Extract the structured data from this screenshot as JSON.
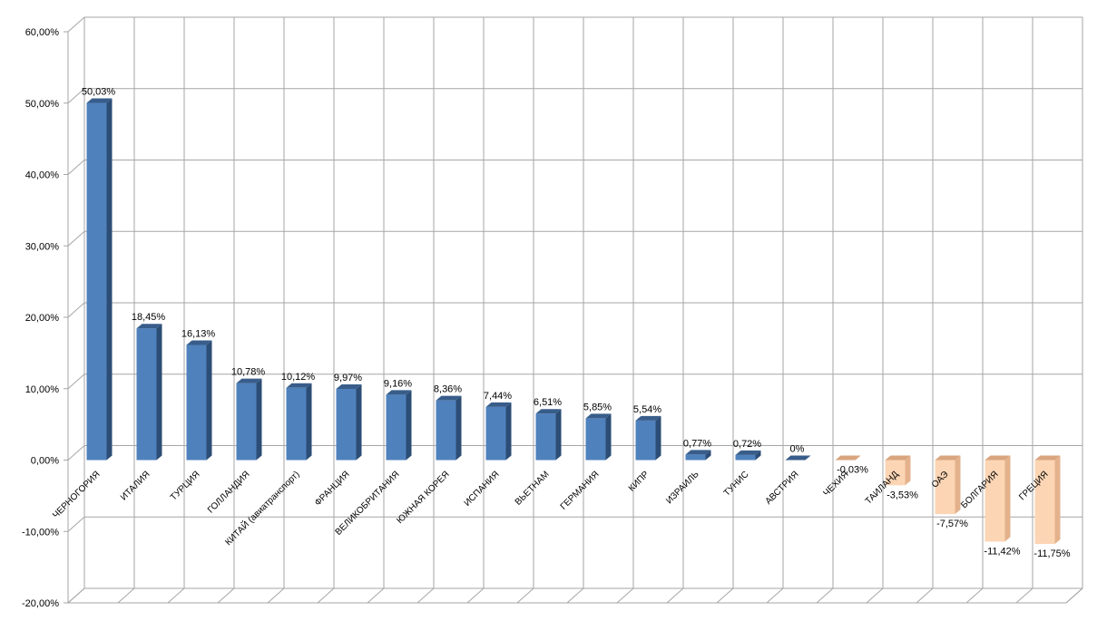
{
  "chart_data": {
    "type": "bar",
    "categories": [
      "ЧЕРНОГОРИЯ",
      "ИТАЛИЯ",
      "ТУРЦИЯ",
      "ГОЛЛАНДИЯ",
      "КИТАЙ (авиатранспорт)",
      "ФРАНЦИЯ",
      "ВЕЛИКОБРИТАНИЯ",
      "ЮЖНАЯ КОРЕЯ",
      "ИСПАНИЯ",
      "ВЬЕТНАМ",
      "ГЕРМАНИЯ",
      "КИПР",
      "ИЗРАИЛЬ",
      "ТУНИС",
      "АВСТРИЯ",
      "ЧЕХИЯ",
      "ТАИЛАНД",
      "ОАЭ",
      "БОЛГАРИЯ",
      "ГРЕЦИЯ"
    ],
    "values": [
      50.03,
      18.45,
      16.13,
      10.78,
      10.12,
      9.97,
      9.16,
      8.36,
      7.44,
      6.51,
      5.85,
      5.54,
      0.77,
      0.72,
      0,
      -0.03,
      -3.53,
      -7.57,
      -11.42,
      -11.75
    ],
    "data_labels": [
      "50,03%",
      "18,45%",
      "16,13%",
      "10,78%",
      "10,12%",
      "9,97%",
      "9,16%",
      "8,36%",
      "7,44%",
      "6,51%",
      "5,85%",
      "5,54%",
      "0,77%",
      "0,72%",
      "0%",
      "-0,03%",
      "-3,53%",
      "-7,57%",
      "-11,42%",
      "-11,75%"
    ],
    "ylim": [
      -20,
      60
    ],
    "y_ticks": [
      60,
      50,
      40,
      30,
      20,
      10,
      0,
      -10,
      -20
    ],
    "y_tick_labels": [
      "60,00%",
      "50,00%",
      "40,00%",
      "30,00%",
      "20,00%",
      "10,00%",
      "0,00%",
      "-10,00%",
      "-20,00%"
    ],
    "grid": true,
    "colors": {
      "positive_front": "#4f81bd",
      "positive_side": "#2c4d75",
      "positive_top": "#385d8a",
      "negative_front": "#fcd5b5",
      "negative_side": "#e3b28c",
      "negative_top": "#d9a57e",
      "grid": "#a6a6a6"
    }
  }
}
